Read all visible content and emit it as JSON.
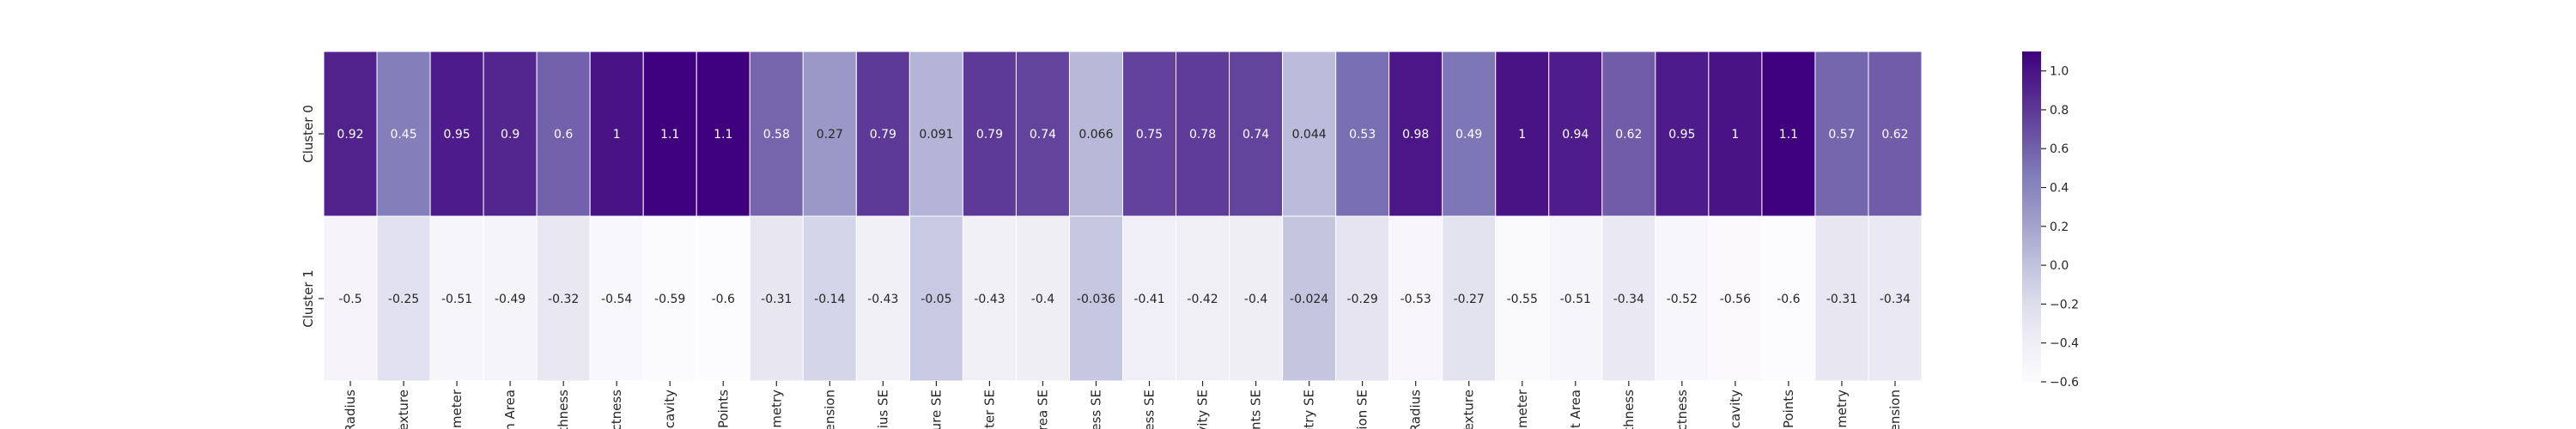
{
  "chart_data": {
    "type": "heatmap",
    "title": "",
    "xlabel": "",
    "ylabel": "",
    "rows": [
      "Cluster 0",
      "Cluster 1"
    ],
    "columns": [
      "Radius",
      "Texture",
      "rimeter",
      "n Area",
      "othness",
      "ctness",
      "ncavity",
      "Points",
      "mmetry",
      "nension",
      "dius SE",
      "ture SE",
      "eter SE",
      "rea SE",
      "ness SE",
      "ess SE",
      "vity SE",
      "ints SE",
      "etry SE",
      "sion SE",
      "Radius",
      "Texture",
      "rimeter",
      "st Area",
      "othness",
      "ctness",
      "ncavity",
      "Points",
      "mmetry",
      "nension"
    ],
    "values": [
      [
        0.92,
        0.45,
        0.95,
        0.9,
        0.6,
        1,
        1.1,
        1.1,
        0.58,
        0.27,
        0.79,
        0.091,
        0.79,
        0.74,
        0.066,
        0.75,
        0.78,
        0.74,
        0.044,
        0.53,
        0.98,
        0.49,
        1,
        0.94,
        0.62,
        0.95,
        1,
        1.1,
        0.57,
        0.62
      ],
      [
        -0.5,
        -0.25,
        -0.51,
        -0.49,
        -0.32,
        -0.54,
        -0.59,
        -0.6,
        -0.31,
        -0.14,
        -0.43,
        -0.05,
        -0.43,
        -0.4,
        -0.036,
        -0.41,
        -0.42,
        -0.4,
        -0.024,
        -0.29,
        -0.53,
        -0.27,
        -0.55,
        -0.51,
        -0.34,
        -0.52,
        -0.56,
        -0.6,
        -0.31,
        -0.34
      ]
    ],
    "colormap": "Purples",
    "colorbar": {
      "min": -0.6,
      "max": 1.1,
      "ticks": [
        1.0,
        0.8,
        0.6,
        0.4,
        0.2,
        0.0,
        -0.2,
        -0.4,
        -0.6
      ],
      "tick_labels": [
        "1.0",
        "0.8",
        "0.6",
        "0.4",
        "0.2",
        "0.0",
        "−0.2",
        "−0.4",
        "−0.6"
      ]
    },
    "legend": "colorbar right",
    "grid": false
  }
}
